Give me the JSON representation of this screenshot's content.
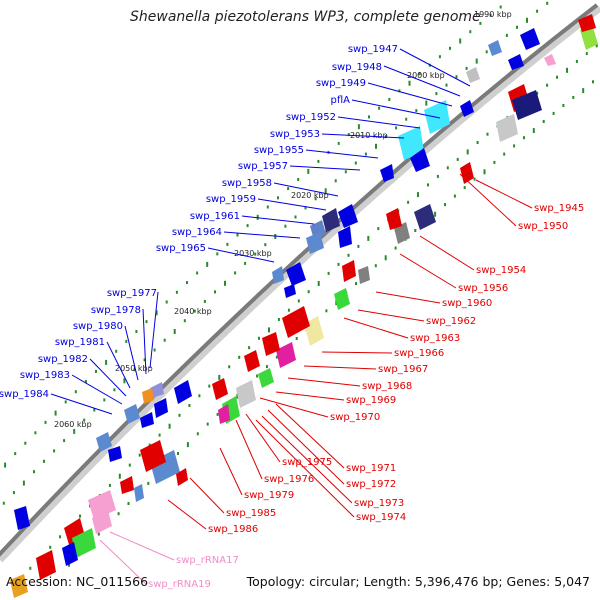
{
  "title": "Shewanella piezotolerans WP3, complete genome",
  "footer": {
    "accession": "Accession: NC_011566",
    "summary": "Topology: circular; Length: 5,396,476 bp; Genes: 5,047"
  },
  "colors": {
    "forward": "#0000e0",
    "reverse": "#e00000",
    "rrna": "#f08cc8",
    "backbone": "#7a7a7a",
    "tick": "#2a8a2a"
  },
  "scale_labels": [
    "1990 kbp",
    "2000 kbp",
    "2010 kbp",
    "2020 kbp",
    "2030 kbp",
    "2040 kbp",
    "2050 kbp",
    "2060 kbp"
  ],
  "left_labels": [
    "swp_1947",
    "swp_1948",
    "swp_1949",
    "pflA",
    "swp_1952",
    "swp_1953",
    "swp_1955",
    "swp_1957",
    "swp_1958",
    "swp_1959",
    "swp_1961",
    "swp_1964",
    "swp_1965",
    "swp_1977",
    "swp_1978",
    "swp_1980",
    "swp_1981",
    "swp_1982",
    "swp_1983",
    "swp_1984"
  ],
  "right_labels": [
    "swp_1945",
    "swp_1950",
    "swp_1954",
    "swp_1956",
    "swp_1960",
    "swp_1962",
    "swp_1963",
    "swp_1966",
    "swp_1967",
    "swp_1968",
    "swp_1969",
    "swp_1970",
    "swp_1971",
    "swp_1972",
    "swp_1973",
    "swp_1974",
    "swp_1975",
    "swp_1976",
    "swp_1979",
    "swp_1985",
    "swp_1986"
  ],
  "rrna_labels": [
    "swp_rRNA17",
    "swp_rRNA19"
  ]
}
